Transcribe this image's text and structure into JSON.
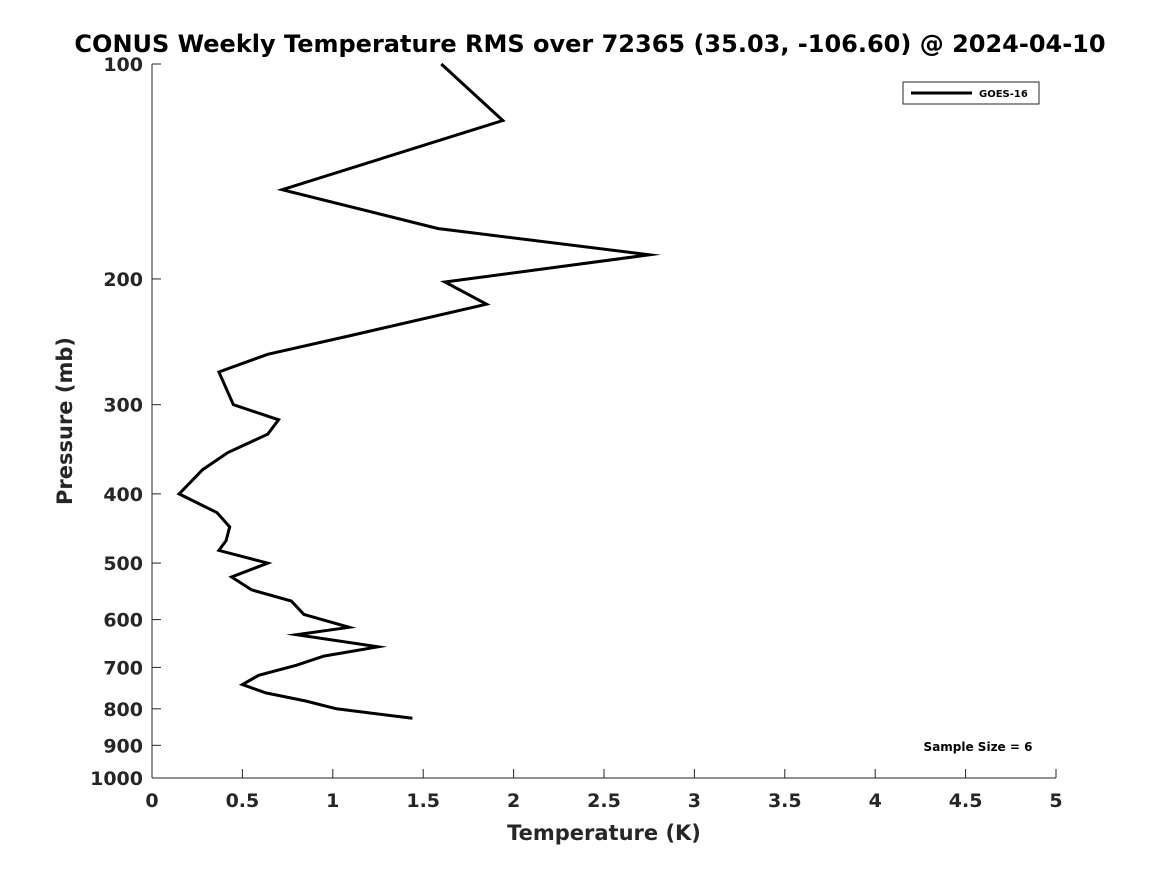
{
  "chart_data": {
    "type": "line",
    "title": "CONUS Weekly Temperature RMS over 72365 (35.03, -106.60) @ 2024-04-10",
    "xlabel": "Temperature (K)",
    "ylabel": "Pressure (mb)",
    "xlim": [
      0,
      5
    ],
    "ylim": [
      100,
      1000
    ],
    "y_scale": "log",
    "y_inverted": true,
    "x_ticks": [
      0,
      0.5,
      1,
      1.5,
      2,
      2.5,
      3,
      3.5,
      4,
      4.5,
      5
    ],
    "x_tick_labels": [
      "0",
      "0.5",
      "1",
      "1.5",
      "2",
      "2.5",
      "3",
      "3.5",
      "4",
      "4.5",
      "5"
    ],
    "y_ticks": [
      100,
      200,
      300,
      400,
      500,
      600,
      700,
      800,
      900,
      1000
    ],
    "y_tick_labels": [
      "100",
      "200",
      "300",
      "400",
      "500",
      "600",
      "700",
      "800",
      "900",
      "1000"
    ],
    "grid": false,
    "legend_position": "top-right",
    "series": [
      {
        "name": "GOES-16",
        "color": "#000000",
        "x": [
          1.6,
          1.94,
          0.72,
          1.58,
          2.75,
          1.62,
          1.85,
          1.1,
          0.64,
          0.37,
          0.45,
          0.7,
          0.64,
          0.42,
          0.28,
          0.15,
          0.36,
          0.43,
          0.41,
          0.37,
          0.64,
          0.44,
          0.55,
          0.77,
          0.84,
          1.09,
          0.8,
          1.25,
          0.95,
          0.8,
          0.59,
          0.5,
          0.63,
          0.85,
          1.02,
          1.44
        ],
        "y": [
          100,
          120,
          150,
          170,
          185,
          202,
          217,
          240,
          255,
          270,
          300,
          315,
          330,
          350,
          370,
          400,
          425,
          445,
          465,
          480,
          500,
          523,
          545,
          565,
          590,
          615,
          630,
          655,
          675,
          695,
          718,
          740,
          760,
          780,
          800,
          825
        ]
      }
    ],
    "annotations": [
      "Sample Size = 6"
    ]
  }
}
